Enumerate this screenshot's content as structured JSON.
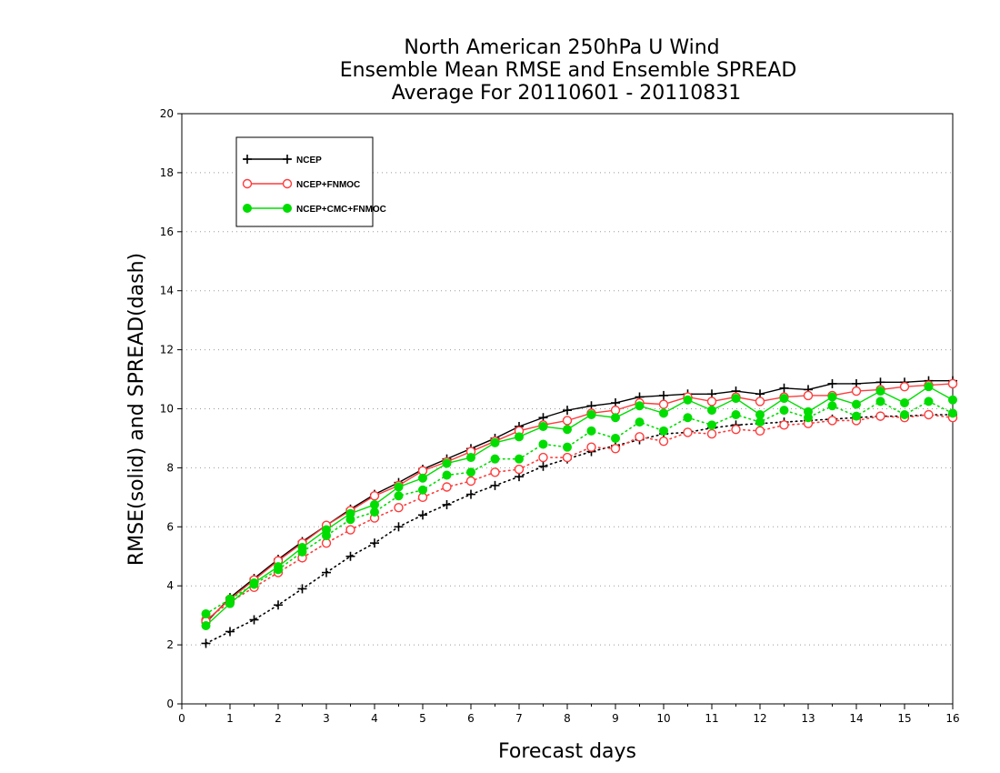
{
  "chart_data": {
    "type": "line",
    "title_lines": [
      "North American 250hPa U Wind",
      "Ensemble Mean RMSE and Ensemble SPREAD",
      "Average For 20110601 - 20110831"
    ],
    "xlabel": "Forecast days",
    "ylabel": "RMSE(solid) and SPREAD(dash)",
    "xlim": [
      0,
      16
    ],
    "ylim": [
      0,
      20
    ],
    "xticks": [
      0,
      1,
      2,
      3,
      4,
      5,
      6,
      7,
      8,
      9,
      10,
      11,
      12,
      13,
      14,
      15,
      16
    ],
    "yticks": [
      0,
      2,
      4,
      6,
      8,
      10,
      12,
      14,
      16,
      18,
      20
    ],
    "grid": "horizontal dotted",
    "legend_position": "top-left",
    "x": [
      0.5,
      1,
      1.5,
      2,
      2.5,
      3,
      3.5,
      4,
      4.5,
      5,
      5.5,
      6,
      6.5,
      7,
      7.5,
      8,
      8.5,
      9,
      9.5,
      10,
      10.5,
      11,
      11.5,
      12,
      12.5,
      13,
      13.5,
      14,
      14.5,
      15,
      15.5,
      16
    ],
    "series": [
      {
        "name": "NCEP",
        "color": "#000000",
        "marker": "plus",
        "rmse": [
          2.75,
          3.6,
          4.25,
          4.9,
          5.5,
          6.05,
          6.6,
          7.1,
          7.5,
          7.95,
          8.3,
          8.65,
          9.0,
          9.4,
          9.7,
          9.95,
          10.1,
          10.2,
          10.4,
          10.45,
          10.5,
          10.5,
          10.6,
          10.5,
          10.7,
          10.65,
          10.85,
          10.85,
          10.9,
          10.9,
          10.95,
          10.95
        ],
        "spread": [
          2.05,
          2.45,
          2.85,
          3.35,
          3.9,
          4.45,
          5.0,
          5.45,
          6.0,
          6.4,
          6.75,
          7.1,
          7.4,
          7.7,
          8.05,
          8.3,
          8.55,
          8.75,
          8.95,
          9.15,
          9.2,
          9.35,
          9.45,
          9.5,
          9.55,
          9.6,
          9.65,
          9.7,
          9.75,
          9.75,
          9.8,
          9.8
        ]
      },
      {
        "name": "NCEP+FNMOC",
        "color": "#ff3b3b",
        "marker": "open-circle",
        "rmse": [
          2.8,
          3.55,
          4.2,
          4.85,
          5.45,
          6.05,
          6.55,
          7.05,
          7.4,
          7.9,
          8.2,
          8.55,
          8.9,
          9.25,
          9.45,
          9.6,
          9.85,
          9.95,
          10.2,
          10.15,
          10.4,
          10.25,
          10.4,
          10.25,
          10.4,
          10.45,
          10.45,
          10.6,
          10.65,
          10.75,
          10.8,
          10.85
        ],
        "spread": [
          2.85,
          3.45,
          3.95,
          4.45,
          4.95,
          5.45,
          5.9,
          6.3,
          6.65,
          7.0,
          7.35,
          7.55,
          7.85,
          7.95,
          8.35,
          8.35,
          8.7,
          8.65,
          9.05,
          8.9,
          9.2,
          9.15,
          9.3,
          9.25,
          9.45,
          9.5,
          9.6,
          9.6,
          9.75,
          9.7,
          9.8,
          9.7
        ]
      },
      {
        "name": "NCEP+CMC+FNMOC",
        "color": "#00dd00",
        "marker": "filled-circle",
        "rmse": [
          2.65,
          3.4,
          4.1,
          4.65,
          5.3,
          5.9,
          6.45,
          6.75,
          7.35,
          7.65,
          8.15,
          8.35,
          8.85,
          9.05,
          9.4,
          9.3,
          9.8,
          9.7,
          10.1,
          9.85,
          10.3,
          9.95,
          10.35,
          9.8,
          10.35,
          9.9,
          10.4,
          10.15,
          10.6,
          10.2,
          10.75,
          10.3
        ],
        "spread": [
          3.05,
          3.55,
          4.05,
          4.55,
          5.15,
          5.7,
          6.25,
          6.5,
          7.05,
          7.25,
          7.75,
          7.85,
          8.3,
          8.3,
          8.8,
          8.7,
          9.25,
          9.0,
          9.55,
          9.25,
          9.7,
          9.45,
          9.8,
          9.55,
          9.95,
          9.7,
          10.1,
          9.75,
          10.25,
          9.8,
          10.25,
          9.85
        ]
      }
    ]
  }
}
